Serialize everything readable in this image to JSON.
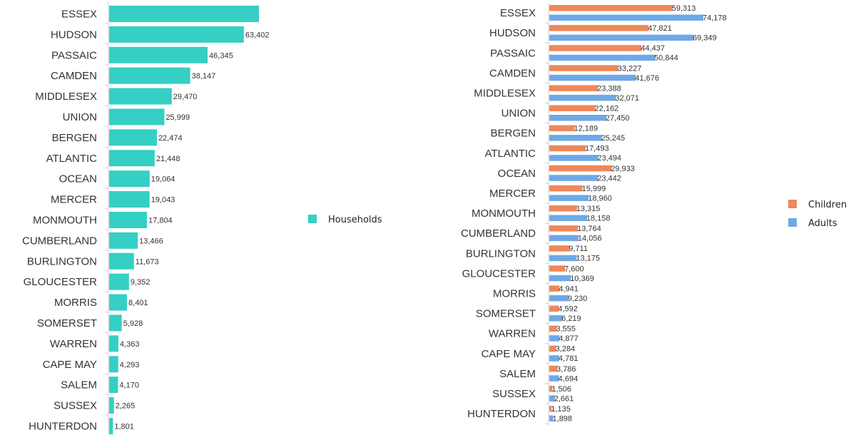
{
  "chart_data": [
    {
      "type": "bar",
      "orientation": "horizontal",
      "categories": [
        "ESSEX",
        "HUDSON",
        "PASSAIC",
        "CAMDEN",
        "MIDDLESEX",
        "UNION",
        "BERGEN",
        "ATLANTIC",
        "OCEAN",
        "MERCER",
        "MONMOUTH",
        "CUMBERLAND",
        "BURLINGTON",
        "GLOUCESTER",
        "MORRIS",
        "SOMERSET",
        "WARREN",
        "CAPE MAY",
        "SALEM",
        "SUSSEX",
        "HUNTERDON"
      ],
      "series": [
        {
          "name": "Households",
          "color": "#35cfc4",
          "values": [
            70500,
            63402,
            46345,
            38147,
            29470,
            25999,
            22474,
            21448,
            19064,
            19043,
            17804,
            13466,
            11673,
            9352,
            8401,
            5928,
            4363,
            4293,
            4170,
            2265,
            1801
          ],
          "labels": [
            "",
            "63,402",
            "46,345",
            "38,147",
            "29,470",
            "25,999",
            "22,474",
            "21,448",
            "19,064",
            "19,043",
            "17,804",
            "13,466",
            "11,673",
            "9,352",
            "8,401",
            "5,928",
            "4,363",
            "4,293",
            "4,170",
            "2,265",
            "1,801"
          ]
        }
      ],
      "legend": "right",
      "grid": false
    },
    {
      "type": "bar",
      "orientation": "horizontal",
      "categories": [
        "ESSEX",
        "HUDSON",
        "PASSAIC",
        "CAMDEN",
        "MIDDLESEX",
        "UNION",
        "BERGEN",
        "ATLANTIC",
        "OCEAN",
        "MERCER",
        "MONMOUTH",
        "CUMBERLAND",
        "BURLINGTON",
        "GLOUCESTER",
        "MORRIS",
        "SOMERSET",
        "WARREN",
        "CAPE MAY",
        "SALEM",
        "SUSSEX",
        "HUNTERDON"
      ],
      "series": [
        {
          "name": "Children",
          "color": "#f0875a",
          "values": [
            59313,
            47821,
            44437,
            33227,
            23388,
            22162,
            12189,
            17493,
            29933,
            15999,
            13315,
            13764,
            9711,
            7600,
            4941,
            4592,
            3555,
            3284,
            3786,
            1506,
            1135
          ],
          "labels": [
            "59,313",
            "47,821",
            "44,437",
            "33,227",
            "23,388",
            "22,162",
            "12,189",
            "17,493",
            "29,933",
            "15,999",
            "13,315",
            "13,764",
            "9,711",
            "7,600",
            "4,941",
            "4,592",
            "3,555",
            "3,284",
            "3,786",
            "1,506",
            "1,135"
          ]
        },
        {
          "name": "Adults",
          "color": "#6fa8e6",
          "values": [
            74178,
            69349,
            50844,
            41676,
            32071,
            27450,
            25245,
            23494,
            23442,
            18960,
            18158,
            14056,
            13175,
            10369,
            9230,
            6219,
            4877,
            4781,
            4694,
            2661,
            1898
          ],
          "labels": [
            "74,178",
            "69,349",
            "50,844",
            "41,676",
            "32,071",
            "27,450",
            "25,245",
            "23,494",
            "23,442",
            "18,960",
            "18,158",
            "14,056",
            "13,175",
            "10,369",
            "9,230",
            "6,219",
            "4,877",
            "4,781",
            "4,694",
            "2,661",
            "1,898"
          ]
        }
      ],
      "legend": "right",
      "grid": false
    }
  ]
}
